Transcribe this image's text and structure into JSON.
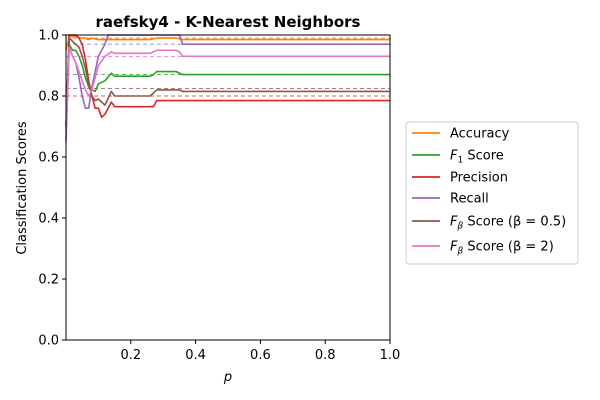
{
  "chart_data": {
    "type": "line",
    "title": "raefsky4 - K-Nearest Neighbors",
    "xlabel": "p",
    "ylabel": "Classification Scores",
    "xlim": [
      0.0,
      1.0
    ],
    "ylim": [
      0.0,
      1.0
    ],
    "x_ticks": [
      "0.2",
      "0.4",
      "0.6",
      "0.8",
      "1.0"
    ],
    "y_ticks": [
      "0.0",
      "0.2",
      "0.4",
      "0.6",
      "0.8",
      "1.0"
    ],
    "grid": false,
    "legend_position": "right",
    "series": [
      {
        "name": "Accuracy",
        "color": "#ff7f0e",
        "x": [
          0.0,
          0.01,
          0.02,
          0.03,
          0.05,
          0.06,
          0.07,
          0.08,
          0.1,
          0.12,
          0.14,
          0.2,
          0.26,
          0.28,
          0.34,
          0.36,
          0.5,
          0.8,
          1.0
        ],
        "y": [
          0.95,
          0.995,
          0.995,
          0.995,
          0.99,
          0.99,
          0.985,
          0.99,
          0.985,
          0.985,
          0.985,
          0.985,
          0.985,
          0.99,
          0.99,
          0.985,
          0.985,
          0.985,
          0.985
        ],
        "ref": 0.99
      },
      {
        "name": "F_1 Score",
        "color": "#2ca02c",
        "x": [
          0.0,
          0.01,
          0.02,
          0.03,
          0.04,
          0.05,
          0.06,
          0.07,
          0.08,
          0.09,
          0.1,
          0.12,
          0.14,
          0.15,
          0.2,
          0.26,
          0.27,
          0.28,
          0.34,
          0.35,
          0.36,
          0.5,
          0.8,
          1.0
        ],
        "y": [
          0.7,
          0.97,
          0.95,
          0.95,
          0.93,
          0.9,
          0.86,
          0.83,
          0.82,
          0.815,
          0.84,
          0.85,
          0.875,
          0.865,
          0.865,
          0.865,
          0.87,
          0.88,
          0.88,
          0.875,
          0.87,
          0.87,
          0.87,
          0.87
        ],
        "ref": 0.87
      },
      {
        "name": "Precision",
        "color": "#d62728",
        "x": [
          0.0,
          0.01,
          0.03,
          0.04,
          0.05,
          0.06,
          0.07,
          0.08,
          0.09,
          0.1,
          0.11,
          0.12,
          0.13,
          0.14,
          0.15,
          0.2,
          0.27,
          0.28,
          0.34,
          0.36,
          0.5,
          0.8,
          1.0
        ],
        "y": [
          0.7,
          1.0,
          1.0,
          0.99,
          0.97,
          0.92,
          0.85,
          0.8,
          0.76,
          0.76,
          0.73,
          0.74,
          0.76,
          0.78,
          0.765,
          0.765,
          0.765,
          0.785,
          0.785,
          0.785,
          0.785,
          0.785,
          0.785
        ],
        "ref": 0.8
      },
      {
        "name": "Recall",
        "color": "#9467bd",
        "x": [
          0.0,
          0.01,
          0.02,
          0.03,
          0.04,
          0.05,
          0.06,
          0.07,
          0.08,
          0.1,
          0.12,
          0.13,
          0.14,
          0.2,
          0.33,
          0.35,
          0.36,
          0.5,
          0.8,
          1.0
        ],
        "y": [
          0.65,
          0.96,
          0.93,
          0.91,
          0.86,
          0.8,
          0.76,
          0.76,
          0.83,
          0.93,
          0.97,
          1.0,
          1.0,
          1.0,
          1.0,
          1.0,
          0.97,
          0.97,
          0.97,
          0.97
        ],
        "ref": 0.97
      },
      {
        "name": "F_beta Score (beta=0.5)",
        "color": "#8c564b",
        "x": [
          0.0,
          0.01,
          0.03,
          0.04,
          0.05,
          0.06,
          0.07,
          0.08,
          0.09,
          0.1,
          0.12,
          0.14,
          0.15,
          0.2,
          0.26,
          0.27,
          0.28,
          0.34,
          0.35,
          0.36,
          0.5,
          0.8,
          1.0
        ],
        "y": [
          0.7,
          0.99,
          0.97,
          0.96,
          0.93,
          0.89,
          0.84,
          0.8,
          0.785,
          0.79,
          0.77,
          0.815,
          0.8,
          0.8,
          0.8,
          0.81,
          0.82,
          0.82,
          0.82,
          0.815,
          0.815,
          0.815,
          0.815
        ],
        "ref": 0.825
      },
      {
        "name": "F_beta Score (beta=2)",
        "color": "#e377c2",
        "x": [
          0.0,
          0.01,
          0.02,
          0.03,
          0.04,
          0.05,
          0.06,
          0.07,
          0.08,
          0.09,
          0.1,
          0.12,
          0.14,
          0.15,
          0.2,
          0.26,
          0.27,
          0.28,
          0.34,
          0.35,
          0.36,
          0.5,
          0.8,
          1.0
        ],
        "y": [
          0.68,
          0.96,
          0.93,
          0.91,
          0.88,
          0.85,
          0.82,
          0.8,
          0.82,
          0.86,
          0.9,
          0.93,
          0.945,
          0.94,
          0.94,
          0.94,
          0.945,
          0.95,
          0.95,
          0.945,
          0.93,
          0.93,
          0.93,
          0.93
        ],
        "ref": 0.93
      }
    ],
    "legend": [
      {
        "prefix": "Accuracy",
        "sub": "",
        "suffix": ""
      },
      {
        "prefix": "F",
        "sub": "1",
        "suffix": " Score"
      },
      {
        "prefix": "Precision",
        "sub": "",
        "suffix": ""
      },
      {
        "prefix": "Recall",
        "sub": "",
        "suffix": ""
      },
      {
        "prefix": "F",
        "sub": "β",
        "suffix": " Score (β = 0.5)"
      },
      {
        "prefix": "F",
        "sub": "β",
        "suffix": " Score (β = 2)"
      }
    ]
  }
}
